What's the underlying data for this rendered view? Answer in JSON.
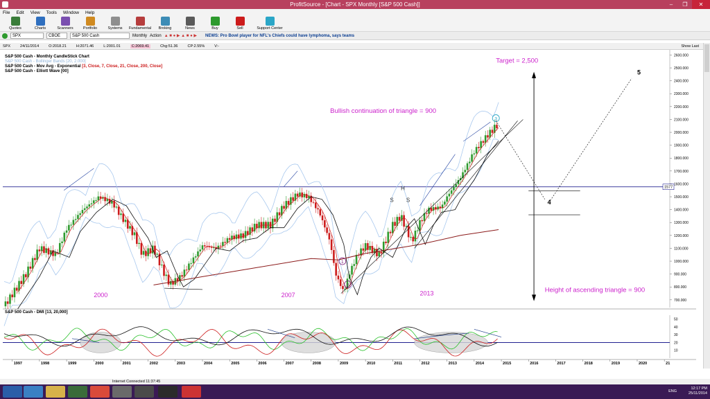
{
  "window": {
    "title": "ProfitSource - [Chart - SPX Monthly [S&P 500 Cash]]"
  },
  "menu": [
    "File",
    "Edit",
    "View",
    "Tools",
    "Window",
    "Help"
  ],
  "toolbar": [
    "Quotes",
    "Charts",
    "Scanners",
    "Portfolio",
    "Systems",
    "Fundamental",
    "Broking",
    "News",
    "Buy",
    "Sell",
    "Support Center"
  ],
  "symbolbar": {
    "symbol": "SPX",
    "exchange": "CBOE",
    "name": "S&P 500 Cash",
    "period": "Monthly",
    "action": "Action",
    "news": "NEWS: Pro Bowl player for NFL's Chiefs could have lymphoma, says teams"
  },
  "quote": {
    "sym": "SPX",
    "date": "24/11/2014",
    "open": "O:2018.21",
    "high": "H:2071.46",
    "low": "L:2001.01",
    "close": "C:2069.41",
    "chg": "Chg:51.36",
    "chgpct": "CP:2.55%",
    "v": "V:-",
    "show_last": "Show Last"
  },
  "legend": {
    "l1": "S&P 500 Cash - Monthly CandleStick Chart",
    "l2": "S&P 500 Cash - Bollinger Bands [20, 2.000]",
    "l3a": "S&P 500 Cash - Mov Avg - Exponential",
    "l3b": "[3, Close, 7, Close, 21, Close, 200, Close]",
    "l4": "S&P 500 Cash - Elliott Wave [00]",
    "dmi": "S&P 500 Cash - DMI [13, 20,000]"
  },
  "annotations": {
    "target": "Target = 2,500",
    "bullish": "Bullish continuation of triangle = 900",
    "height": "Height of ascending triangle = 900",
    "y2000": "2000",
    "y2007": "2007",
    "y2013": "2013",
    "H": "H",
    "S1": "S",
    "S2": "S",
    "w4": "4",
    "w5": "5",
    "w1": "1",
    "w2": "2",
    "w3": "3",
    "level": "1577"
  },
  "colors": {
    "bull": "#2e9a2e",
    "bear": "#cc1b1b",
    "annot": "#cc22cc",
    "axis": "#000080"
  },
  "chart_data": {
    "type": "candlestick",
    "title": "S&P 500 Cash - Monthly CandleStick Chart",
    "x_ticks": [
      "1997",
      "1998",
      "1999",
      "2000",
      "2001",
      "2002",
      "2003",
      "2004",
      "2005",
      "2006",
      "2007",
      "2008",
      "2009",
      "2010",
      "2011",
      "2012",
      "2013",
      "2014",
      "2015",
      "2016",
      "2017",
      "2018",
      "2019",
      "2020",
      "21"
    ],
    "y_ticks": [
      "700.000",
      "800.000",
      "900.000",
      "1000.000",
      "1100.000",
      "1200.000",
      "1300.000",
      "1400.000",
      "1500.000",
      "1600.000",
      "1700.000",
      "1800.000",
      "1900.000",
      "2000.000",
      "2100.000",
      "2200.000",
      "2300.000",
      "2400.000",
      "2500.000",
      "2600.000"
    ],
    "ylim": [
      640,
      2640
    ],
    "xlim": [
      1996.65,
      2021.2
    ],
    "horizontal_level": 1577,
    "close_path": [
      [
        1996.7,
        650
      ],
      [
        1997.5,
        900
      ],
      [
        1998.0,
        1100
      ],
      [
        1998.6,
        1050
      ],
      [
        1999.0,
        1250
      ],
      [
        1999.6,
        1400
      ],
      [
        2000.2,
        1500
      ],
      [
        2000.7,
        1450
      ],
      [
        2001.0,
        1350
      ],
      [
        2001.5,
        1200
      ],
      [
        2001.8,
        1050
      ],
      [
        2002.2,
        1100
      ],
      [
        2002.6,
        900
      ],
      [
        2002.8,
        820
      ],
      [
        2003.2,
        880
      ],
      [
        2003.6,
        1000
      ],
      [
        2004.0,
        1120
      ],
      [
        2004.5,
        1100
      ],
      [
        2005.0,
        1180
      ],
      [
        2005.5,
        1200
      ],
      [
        2006.0,
        1280
      ],
      [
        2006.5,
        1280
      ],
      [
        2007.0,
        1430
      ],
      [
        2007.5,
        1520
      ],
      [
        2007.9,
        1500
      ],
      [
        2008.3,
        1380
      ],
      [
        2008.7,
        1150
      ],
      [
        2008.9,
        900
      ],
      [
        2009.2,
        760
      ],
      [
        2009.4,
        900
      ],
      [
        2009.7,
        1050
      ],
      [
        2010.0,
        1120
      ],
      [
        2010.5,
        1050
      ],
      [
        2011.0,
        1280
      ],
      [
        2011.3,
        1350
      ],
      [
        2011.7,
        1150
      ],
      [
        2012.0,
        1300
      ],
      [
        2012.3,
        1400
      ],
      [
        2012.8,
        1420
      ],
      [
        2013.0,
        1500
      ],
      [
        2013.5,
        1650
      ],
      [
        2014.0,
        1850
      ],
      [
        2014.5,
        1980
      ],
      [
        2014.9,
        2070
      ]
    ],
    "dmi_ylim": [
      0,
      55
    ],
    "dmi_ticks": [
      "10",
      "20",
      "30",
      "40",
      "50"
    ]
  }
}
